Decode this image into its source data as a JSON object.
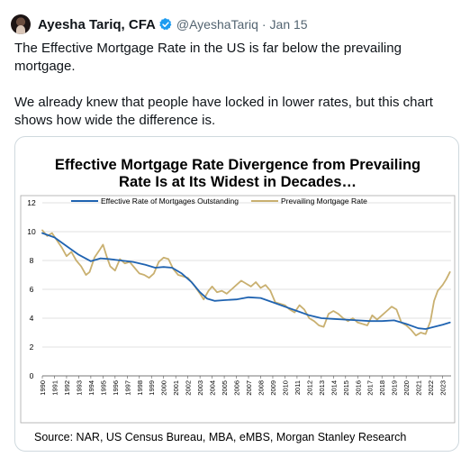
{
  "tweet": {
    "author_name": "Ayesha Tariq, CFA",
    "handle": "@AyeshaTariq",
    "date": "Jan 15",
    "separator": "·",
    "icons": {
      "avatar": "avatar-photo",
      "verified": "verified-badge-icon"
    },
    "colors": {
      "verified": "#1d9bf0",
      "text": "#0f1419",
      "muted": "#536471"
    },
    "text_paragraphs": [
      "The Effective Mortgage Rate in the US is far below the prevailing mortgage.",
      "We already knew that people have locked in lower rates, but this chart shows how wide the difference is."
    ]
  },
  "chart_data": {
    "type": "line",
    "title_lines": [
      "Effective Mortgage Rate Divergence from Prevailing",
      "Rate Is at Its Widest in Decades…"
    ],
    "source": "Source: NAR, US Census Bureau, MBA, eMBS, Morgan Stanley Research",
    "ylim": [
      0,
      12
    ],
    "yticks": [
      "0",
      "2",
      "4",
      "6",
      "8",
      "10",
      "12"
    ],
    "xlim": [
      1990,
      2023.7
    ],
    "xticks": [
      "1990",
      "1991",
      "1992",
      "1993",
      "1994",
      "1995",
      "1996",
      "1997",
      "1998",
      "1999",
      "2000",
      "2001",
      "2002",
      "2003",
      "2004",
      "2005",
      "2006",
      "2007",
      "2008",
      "2009",
      "2010",
      "2011",
      "2012",
      "2013",
      "2014",
      "2015",
      "2016",
      "2017",
      "2018",
      "2019",
      "2020",
      "2021",
      "2022",
      "2023"
    ],
    "grid": "horizontal",
    "legend": "top",
    "series": [
      {
        "name": "Effective Rate of Mortgages Outstanding",
        "color": "#1f63b1",
        "points": [
          [
            1990,
            9.9
          ],
          [
            1991,
            9.6
          ],
          [
            1992,
            9.0
          ],
          [
            1993,
            8.4
          ],
          [
            1994,
            7.95
          ],
          [
            1994.8,
            8.15
          ],
          [
            1995.5,
            8.1
          ],
          [
            1996.5,
            8.0
          ],
          [
            1997.5,
            7.9
          ],
          [
            1998.5,
            7.7
          ],
          [
            1999.3,
            7.5
          ],
          [
            2000,
            7.55
          ],
          [
            2000.7,
            7.5
          ],
          [
            2001.5,
            7.1
          ],
          [
            2002.3,
            6.5
          ],
          [
            2003,
            5.8
          ],
          [
            2003.6,
            5.35
          ],
          [
            2004.2,
            5.2
          ],
          [
            2005,
            5.25
          ],
          [
            2006,
            5.3
          ],
          [
            2007,
            5.45
          ],
          [
            2008,
            5.4
          ],
          [
            2009,
            5.1
          ],
          [
            2010,
            4.8
          ],
          [
            2011,
            4.5
          ],
          [
            2012,
            4.2
          ],
          [
            2013,
            4.0
          ],
          [
            2014,
            3.95
          ],
          [
            2015,
            3.9
          ],
          [
            2016,
            3.85
          ],
          [
            2017,
            3.8
          ],
          [
            2018,
            3.8
          ],
          [
            2019,
            3.85
          ],
          [
            2020,
            3.6
          ],
          [
            2021,
            3.3
          ],
          [
            2021.6,
            3.25
          ],
          [
            2022.3,
            3.4
          ],
          [
            2023,
            3.55
          ],
          [
            2023.6,
            3.7
          ]
        ]
      },
      {
        "name": "Prevailing Mortgage Rate",
        "color": "#c9b070",
        "points": [
          [
            1990,
            10.1
          ],
          [
            1990.4,
            9.7
          ],
          [
            1990.8,
            9.9
          ],
          [
            1991.2,
            9.4
          ],
          [
            1991.6,
            8.9
          ],
          [
            1992,
            8.3
          ],
          [
            1992.4,
            8.6
          ],
          [
            1992.8,
            8.0
          ],
          [
            1993.2,
            7.6
          ],
          [
            1993.6,
            7.0
          ],
          [
            1993.9,
            7.2
          ],
          [
            1994.3,
            8.2
          ],
          [
            1994.7,
            8.7
          ],
          [
            1995,
            9.1
          ],
          [
            1995.3,
            8.3
          ],
          [
            1995.6,
            7.6
          ],
          [
            1996,
            7.3
          ],
          [
            1996.4,
            8.1
          ],
          [
            1996.8,
            7.8
          ],
          [
            1997.2,
            7.9
          ],
          [
            1997.6,
            7.5
          ],
          [
            1998,
            7.1
          ],
          [
            1998.4,
            7.0
          ],
          [
            1998.8,
            6.8
          ],
          [
            1999.2,
            7.1
          ],
          [
            1999.6,
            7.9
          ],
          [
            2000,
            8.2
          ],
          [
            2000.4,
            8.1
          ],
          [
            2000.8,
            7.4
          ],
          [
            2001.2,
            7.0
          ],
          [
            2001.6,
            6.9
          ],
          [
            2002,
            6.8
          ],
          [
            2002.5,
            6.3
          ],
          [
            2003,
            5.7
          ],
          [
            2003.3,
            5.3
          ],
          [
            2003.7,
            5.9
          ],
          [
            2004,
            6.2
          ],
          [
            2004.4,
            5.8
          ],
          [
            2004.8,
            5.9
          ],
          [
            2005.2,
            5.7
          ],
          [
            2005.6,
            6.0
          ],
          [
            2006,
            6.3
          ],
          [
            2006.4,
            6.6
          ],
          [
            2006.8,
            6.4
          ],
          [
            2007.2,
            6.2
          ],
          [
            2007.6,
            6.5
          ],
          [
            2008,
            6.1
          ],
          [
            2008.4,
            6.3
          ],
          [
            2008.8,
            5.9
          ],
          [
            2009.2,
            5.1
          ],
          [
            2009.6,
            5.0
          ],
          [
            2010,
            4.9
          ],
          [
            2010.4,
            4.6
          ],
          [
            2010.8,
            4.4
          ],
          [
            2011.2,
            4.9
          ],
          [
            2011.6,
            4.6
          ],
          [
            2012,
            4.0
          ],
          [
            2012.4,
            3.8
          ],
          [
            2012.8,
            3.5
          ],
          [
            2013.2,
            3.4
          ],
          [
            2013.6,
            4.3
          ],
          [
            2014,
            4.5
          ],
          [
            2014.4,
            4.3
          ],
          [
            2014.8,
            4.0
          ],
          [
            2015.2,
            3.8
          ],
          [
            2015.6,
            4.0
          ],
          [
            2016,
            3.7
          ],
          [
            2016.4,
            3.6
          ],
          [
            2016.8,
            3.5
          ],
          [
            2017.2,
            4.2
          ],
          [
            2017.6,
            3.9
          ],
          [
            2018,
            4.2
          ],
          [
            2018.4,
            4.5
          ],
          [
            2018.8,
            4.8
          ],
          [
            2019.2,
            4.6
          ],
          [
            2019.6,
            3.7
          ],
          [
            2020,
            3.5
          ],
          [
            2020.4,
            3.2
          ],
          [
            2020.8,
            2.8
          ],
          [
            2021.2,
            3.0
          ],
          [
            2021.6,
            2.9
          ],
          [
            2022,
            3.8
          ],
          [
            2022.3,
            5.2
          ],
          [
            2022.6,
            5.9
          ],
          [
            2023,
            6.3
          ],
          [
            2023.3,
            6.7
          ],
          [
            2023.6,
            7.2
          ]
        ]
      }
    ]
  }
}
